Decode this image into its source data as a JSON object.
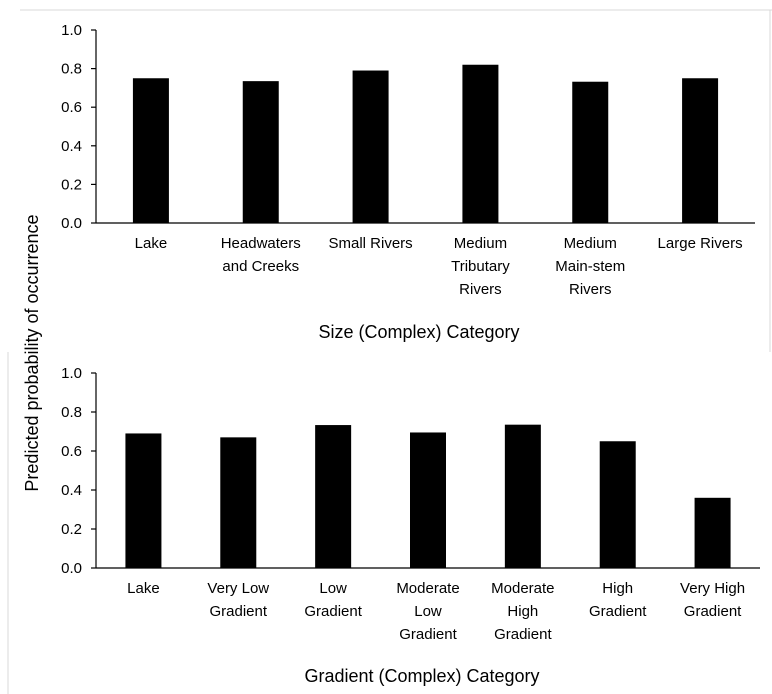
{
  "shared_ylabel": "Predicted probability of occurrence",
  "chart_data": [
    {
      "type": "bar",
      "title": "",
      "xlabel": "Size (Complex) Category",
      "ylabel": "Predicted probability of occurrence",
      "ylim": [
        0,
        1.0
      ],
      "yticks": [
        "0.0",
        "0.2",
        "0.4",
        "0.6",
        "0.8",
        "1.0"
      ],
      "categories": [
        "Lake",
        "Headwaters and Creeks",
        "Small Rivers",
        "Medium Tributary Rivers",
        "Medium Main-stem Rivers",
        "Large Rivers"
      ],
      "category_lines": [
        [
          "Lake"
        ],
        [
          "Headwaters",
          "and Creeks"
        ],
        [
          "Small Rivers"
        ],
        [
          "Medium",
          "Tributary",
          "Rivers"
        ],
        [
          "Medium",
          "Main-stem",
          "Rivers"
        ],
        [
          "Large Rivers"
        ]
      ],
      "values": [
        0.75,
        0.735,
        0.79,
        0.82,
        0.732,
        0.75
      ],
      "bar_color": "#000000",
      "grid": false
    },
    {
      "type": "bar",
      "title": "",
      "xlabel": "Gradient (Complex) Category",
      "ylabel": "Predicted probability of occurrence",
      "ylim": [
        0,
        1.0
      ],
      "yticks": [
        "0.0",
        "0.2",
        "0.4",
        "0.6",
        "0.8",
        "1.0"
      ],
      "categories": [
        "Lake",
        "Very Low Gradient",
        "Low Gradient",
        "Moderate Low Gradient",
        "Moderate High Gradient",
        "High Gradient",
        "Very High Gradient"
      ],
      "category_lines": [
        [
          "Lake"
        ],
        [
          "Very Low",
          "Gradient"
        ],
        [
          "Low",
          "Gradient"
        ],
        [
          "Moderate",
          "Low",
          "Gradient"
        ],
        [
          "Moderate",
          "High",
          "Gradient"
        ],
        [
          "High",
          "Gradient"
        ],
        [
          "Very High",
          "Gradient"
        ]
      ],
      "values": [
        0.69,
        0.67,
        0.733,
        0.695,
        0.735,
        0.65,
        0.36
      ],
      "bar_color": "#000000",
      "grid": false
    }
  ]
}
